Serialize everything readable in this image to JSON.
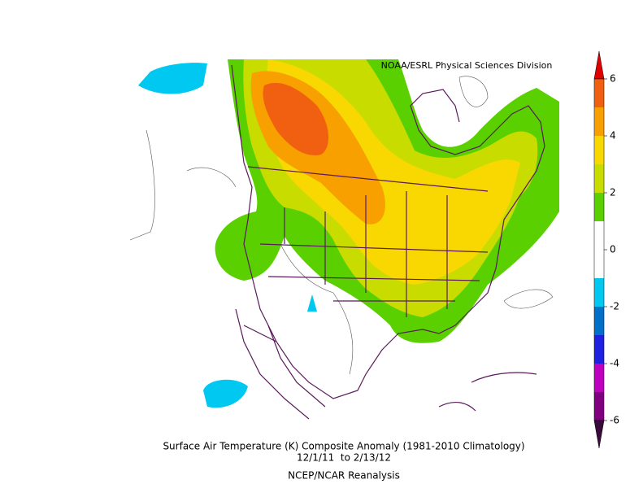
{
  "credit": "NOAA/ESRL Physical Sciences Division",
  "colorbar": {
    "ticks": [
      6,
      4,
      2,
      0,
      -2,
      -4,
      -6
    ]
  },
  "caption": {
    "title": "Surface Air Temperature (K) Composite Anomaly (1981-2010 Climatology)",
    "dates": "12/1/11  to 2/13/12",
    "source": "NCEP/NCAR Reanalysis"
  }
}
